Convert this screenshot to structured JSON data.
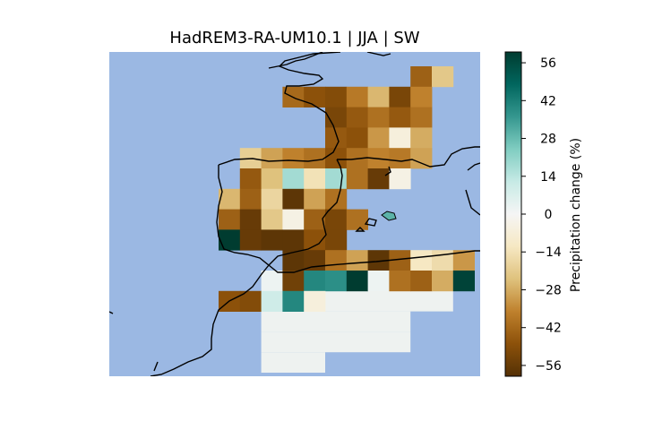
{
  "title": "HadREM3-RA-UM10.1 | JJA | SW",
  "colorbar": {
    "label": "Precipitation change (%)",
    "ticks": [
      56,
      42,
      28,
      14,
      0,
      -14,
      -28,
      -42,
      -56
    ],
    "tick_labels": [
      "56",
      "42",
      "28",
      "14",
      "0",
      "−14",
      "−28",
      "−42",
      "−56"
    ],
    "vmin": -60,
    "vmax": 60,
    "colormap": "BrBG"
  },
  "colors": {
    "sea": "#9bb8e3",
    "coast": "#000000",
    "low_signal": "#eef2f0"
  },
  "chart_data": {
    "type": "heatmap",
    "title": "HadREM3-RA-UM10.1 | JJA | SW",
    "value_label": "Precipitation change (%)",
    "grid_rows": 12,
    "grid_cols": 12,
    "cells": [
      {
        "r": 0,
        "c": 9,
        "v": -44
      },
      {
        "r": 0,
        "c": 10,
        "v": -22
      },
      {
        "r": 1,
        "c": 3,
        "v": -42
      },
      {
        "r": 1,
        "c": 4,
        "v": -48
      },
      {
        "r": 1,
        "c": 5,
        "v": -50
      },
      {
        "r": 1,
        "c": 6,
        "v": -38
      },
      {
        "r": 1,
        "c": 7,
        "v": -26
      },
      {
        "r": 1,
        "c": 8,
        "v": -52
      },
      {
        "r": 1,
        "c": 9,
        "v": -36
      },
      {
        "r": 2,
        "c": 5,
        "v": -52
      },
      {
        "r": 2,
        "c": 6,
        "v": -46
      },
      {
        "r": 2,
        "c": 7,
        "v": -40
      },
      {
        "r": 2,
        "c": 8,
        "v": -46
      },
      {
        "r": 2,
        "c": 9,
        "v": -40
      },
      {
        "r": 3,
        "c": 5,
        "v": -46
      },
      {
        "r": 3,
        "c": 6,
        "v": -48
      },
      {
        "r": 3,
        "c": 7,
        "v": -32
      },
      {
        "r": 3,
        "c": 8,
        "v": -6
      },
      {
        "r": 3,
        "c": 9,
        "v": -28
      },
      {
        "r": 4,
        "c": 1,
        "v": -20
      },
      {
        "r": 4,
        "c": 2,
        "v": -30
      },
      {
        "r": 4,
        "c": 3,
        "v": -36
      },
      {
        "r": 4,
        "c": 4,
        "v": -40
      },
      {
        "r": 4,
        "c": 5,
        "v": -48
      },
      {
        "r": 4,
        "c": 6,
        "v": -40
      },
      {
        "r": 4,
        "c": 7,
        "v": -36
      },
      {
        "r": 4,
        "c": 8,
        "v": -38
      },
      {
        "r": 4,
        "c": 9,
        "v": -30
      },
      {
        "r": 5,
        "c": 1,
        "v": -46
      },
      {
        "r": 5,
        "c": 2,
        "v": -24
      },
      {
        "r": 5,
        "c": 3,
        "v": 18
      },
      {
        "r": 5,
        "c": 4,
        "v": -14
      },
      {
        "r": 5,
        "c": 5,
        "v": 18
      },
      {
        "r": 5,
        "c": 6,
        "v": -40
      },
      {
        "r": 5,
        "c": 7,
        "v": -56
      },
      {
        "r": 5,
        "c": 8,
        "v": -4
      },
      {
        "r": 6,
        "c": 0,
        "v": -26
      },
      {
        "r": 6,
        "c": 1,
        "v": -44
      },
      {
        "r": 6,
        "c": 2,
        "v": -18
      },
      {
        "r": 6,
        "c": 3,
        "v": -58
      },
      {
        "r": 6,
        "c": 4,
        "v": -30
      },
      {
        "r": 6,
        "c": 5,
        "v": -40
      },
      {
        "r": 7,
        "c": 0,
        "v": -44
      },
      {
        "r": 7,
        "c": 1,
        "v": -56
      },
      {
        "r": 7,
        "c": 2,
        "v": -22
      },
      {
        "r": 7,
        "c": 3,
        "v": -4
      },
      {
        "r": 7,
        "c": 4,
        "v": -44
      },
      {
        "r": 7,
        "c": 5,
        "v": -52
      },
      {
        "r": 7,
        "c": 6,
        "v": -40
      },
      {
        "r": 8,
        "c": 0,
        "v": 60
      },
      {
        "r": 8,
        "c": 1,
        "v": -56
      },
      {
        "r": 8,
        "c": 2,
        "v": -58
      },
      {
        "r": 8,
        "c": 3,
        "v": -58
      },
      {
        "r": 8,
        "c": 4,
        "v": -48
      },
      {
        "r": 8,
        "c": 5,
        "v": -52
      },
      {
        "r": 9,
        "c": 3,
        "v": -58
      },
      {
        "r": 9,
        "c": 4,
        "v": -56
      },
      {
        "r": 9,
        "c": 5,
        "v": -40
      },
      {
        "r": 9,
        "c": 6,
        "v": -30
      },
      {
        "r": 9,
        "c": 7,
        "v": -58
      },
      {
        "r": 9,
        "c": 8,
        "v": -44
      },
      {
        "r": 9,
        "c": 9,
        "v": -12
      },
      {
        "r": 9,
        "c": 10,
        "v": -16
      },
      {
        "r": 9,
        "c": 11,
        "v": -32
      },
      {
        "r": 10,
        "c": 2,
        "v": 2
      },
      {
        "r": 10,
        "c": 3,
        "v": -54
      },
      {
        "r": 10,
        "c": 4,
        "v": 40
      },
      {
        "r": 10,
        "c": 5,
        "v": 38
      },
      {
        "r": 10,
        "c": 6,
        "v": 60
      },
      {
        "r": 10,
        "c": 7,
        "v": 2
      },
      {
        "r": 10,
        "c": 8,
        "v": -40
      },
      {
        "r": 10,
        "c": 9,
        "v": -44
      },
      {
        "r": 10,
        "c": 10,
        "v": -28
      },
      {
        "r": 10,
        "c": 11,
        "v": 58
      },
      {
        "r": 11,
        "c": 0,
        "v": -48
      },
      {
        "r": 11,
        "c": 1,
        "v": -50
      },
      {
        "r": 11,
        "c": 2,
        "v": 10
      },
      {
        "r": 11,
        "c": 3,
        "v": 40
      },
      {
        "r": 11,
        "c": 4,
        "v": -6
      }
    ],
    "low_signal_blocks": [
      {
        "r0": 11,
        "r1": 12,
        "c0": 5,
        "c1": 11
      },
      {
        "r0": 12,
        "r1": 13,
        "c0": 2,
        "c1": 9
      },
      {
        "r0": 13,
        "r1": 14,
        "c0": 2,
        "c1": 9
      },
      {
        "r0": 14,
        "r1": 15,
        "c0": 2,
        "c1": 5
      }
    ]
  }
}
